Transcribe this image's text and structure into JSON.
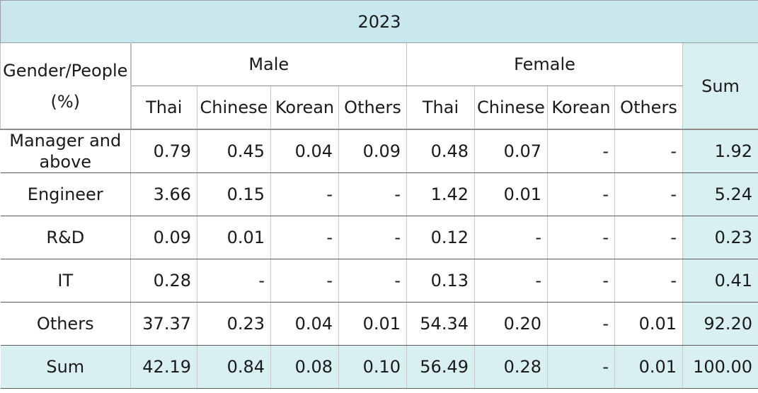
{
  "table": {
    "year": "2023",
    "corner_label": "Gender/People (%)",
    "groups": {
      "male": "Male",
      "female": "Female",
      "sum": "Sum"
    },
    "subheaders": [
      "Thai",
      "Chinese",
      "Korean",
      "Others",
      "Thai",
      "Chinese",
      "Korean",
      "Others"
    ],
    "rows": [
      {
        "label": "Manager and above",
        "male": [
          "0.79",
          "0.45",
          "0.04",
          "0.09"
        ],
        "female": [
          "0.48",
          "0.07",
          "-",
          "-"
        ],
        "sum": "1.92"
      },
      {
        "label": "Engineer",
        "male": [
          "3.66",
          "0.15",
          "-",
          "-"
        ],
        "female": [
          "1.42",
          "0.01",
          "-",
          "-"
        ],
        "sum": "5.24"
      },
      {
        "label": "R&D",
        "male": [
          "0.09",
          "0.01",
          "-",
          "-"
        ],
        "female": [
          "0.12",
          "-",
          "-",
          "-"
        ],
        "sum": "0.23"
      },
      {
        "label": "IT",
        "male": [
          "0.28",
          "-",
          "-",
          "-"
        ],
        "female": [
          "0.13",
          "-",
          "-",
          "-"
        ],
        "sum": "0.41"
      },
      {
        "label": "Others",
        "male": [
          "37.37",
          "0.23",
          "0.04",
          "0.01"
        ],
        "female": [
          "54.34",
          "0.20",
          "-",
          "0.01"
        ],
        "sum": "92.20"
      }
    ],
    "sum_row": {
      "label": "Sum",
      "male": [
        "42.19",
        "0.84",
        "0.08",
        "0.10"
      ],
      "female": [
        "56.49",
        "0.28",
        "-",
        "0.01"
      ],
      "sum": "100.00"
    }
  },
  "colors": {
    "header_band": "#c8e8ee",
    "sum_fill": "#d9f0f2"
  }
}
